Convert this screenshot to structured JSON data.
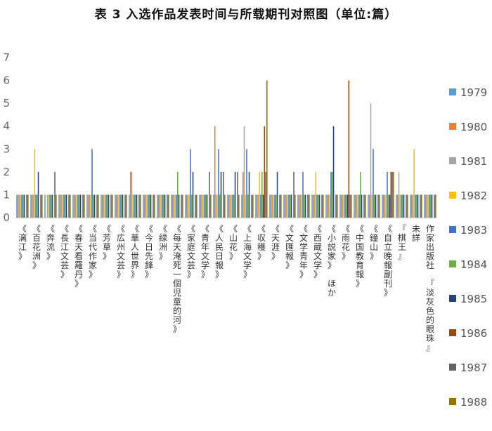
{
  "chart_data": {
    "type": "bar",
    "title": "表 3 入选作品发表时间与所载期刊对照图（单位:篇）",
    "xlabel": "",
    "ylabel": "",
    "ylim": [
      0,
      7
    ],
    "yticks": [
      0,
      1,
      2,
      3,
      4,
      5,
      6,
      7
    ],
    "grid": false,
    "legend_position": "right",
    "categories": [
      "《漓江》",
      "《百花洲》",
      "《奔流》",
      "《長江文芸》",
      "《春天看羅丹》",
      "《当代作家》",
      "《芳草》",
      "《広州文芸》",
      "《華人世界》",
      "《今日先鋒》",
      "《緑洲》",
      "《每天淹死一個児童的河》",
      "《家庭文芸》",
      "《青年文学》",
      "《人民日報》",
      "《山花》",
      "《上海文学》",
      "《収穫》",
      "《天涯》",
      "《文匯報》",
      "《文学青年》",
      "《西蔵文学》",
      "《小説家》 ほか",
      "《雨花》",
      "《中国教育報》",
      "《鐘山》",
      "《自立晚報副刊》",
      "『棋王』",
      "未詳",
      "作家出版社 『淡灰色的眼珠』"
    ],
    "series": [
      {
        "name": "1979",
        "color": "#5b9bd5"
      },
      {
        "name": "1980",
        "color": "#ed7d31"
      },
      {
        "name": "1981",
        "color": "#a5a5a5"
      },
      {
        "name": "1982",
        "color": "#ffc000"
      },
      {
        "name": "1983",
        "color": "#4472c4"
      },
      {
        "name": "1984",
        "color": "#70ad47"
      },
      {
        "name": "1985",
        "color": "#264478"
      },
      {
        "name": "1986",
        "color": "#9e480e"
      },
      {
        "name": "1987",
        "color": "#636363"
      },
      {
        "name": "1988",
        "color": "#997300"
      }
    ],
    "values": [
      [
        1,
        1,
        1,
        1,
        1,
        1,
        1,
        0,
        1,
        1
      ],
      [
        1,
        1,
        1,
        3,
        1,
        1,
        2,
        0,
        1,
        1
      ],
      [
        1,
        0,
        1,
        1,
        1,
        1,
        1,
        0,
        2,
        1
      ],
      [
        1,
        1,
        1,
        1,
        1,
        1,
        1,
        0,
        1,
        1
      ],
      [
        1,
        1,
        1,
        1,
        1,
        1,
        1,
        0,
        1,
        1
      ],
      [
        1,
        1,
        1,
        1,
        3,
        1,
        1,
        0,
        1,
        1
      ],
      [
        1,
        1,
        1,
        1,
        1,
        1,
        1,
        0,
        1,
        1
      ],
      [
        1,
        1,
        1,
        1,
        1,
        1,
        1,
        0,
        1,
        1
      ],
      [
        1,
        2,
        2,
        1,
        1,
        1,
        1,
        0,
        1,
        1
      ],
      [
        1,
        1,
        1,
        1,
        1,
        1,
        1,
        0,
        1,
        1
      ],
      [
        1,
        1,
        1,
        1,
        1,
        1,
        1,
        0,
        1,
        1
      ],
      [
        1,
        1,
        1,
        1,
        1,
        2,
        1,
        0,
        1,
        1
      ],
      [
        1,
        1,
        1,
        1,
        3,
        1,
        2,
        0,
        1,
        1
      ],
      [
        1,
        1,
        1,
        1,
        1,
        1,
        1,
        0,
        2,
        1
      ],
      [
        1,
        4,
        1,
        1,
        3,
        1,
        2,
        0,
        2,
        1
      ],
      [
        1,
        1,
        1,
        1,
        1,
        1,
        2,
        0,
        2,
        1
      ],
      [
        1,
        2,
        4,
        1,
        3,
        1,
        2,
        0,
        1,
        1
      ],
      [
        1,
        1,
        1,
        2,
        1,
        2,
        1,
        4,
        2,
        6
      ],
      [
        1,
        1,
        1,
        1,
        1,
        1,
        2,
        0,
        1,
        1
      ],
      [
        1,
        1,
        1,
        1,
        1,
        1,
        1,
        0,
        2,
        1
      ],
      [
        1,
        1,
        1,
        1,
        2,
        1,
        1,
        0,
        1,
        1
      ],
      [
        1,
        1,
        1,
        2,
        1,
        1,
        1,
        0,
        1,
        1
      ],
      [
        1,
        1,
        1,
        1,
        2,
        2,
        4,
        0,
        1,
        1
      ],
      [
        1,
        1,
        1,
        1,
        1,
        1,
        1,
        6,
        1,
        1
      ],
      [
        1,
        1,
        1,
        1,
        1,
        2,
        1,
        0,
        1,
        1
      ],
      [
        1,
        1,
        5,
        1,
        3,
        1,
        1,
        0,
        1,
        1
      ],
      [
        1,
        1,
        1,
        1,
        2,
        1,
        1,
        2,
        2,
        2
      ],
      [
        1,
        1,
        2,
        1,
        1,
        1,
        1,
        0,
        1,
        1
      ],
      [
        1,
        1,
        1,
        3,
        1,
        1,
        1,
        0,
        1,
        1
      ],
      [
        1,
        1,
        1,
        1,
        1,
        1,
        1,
        0,
        1,
        1
      ]
    ]
  }
}
